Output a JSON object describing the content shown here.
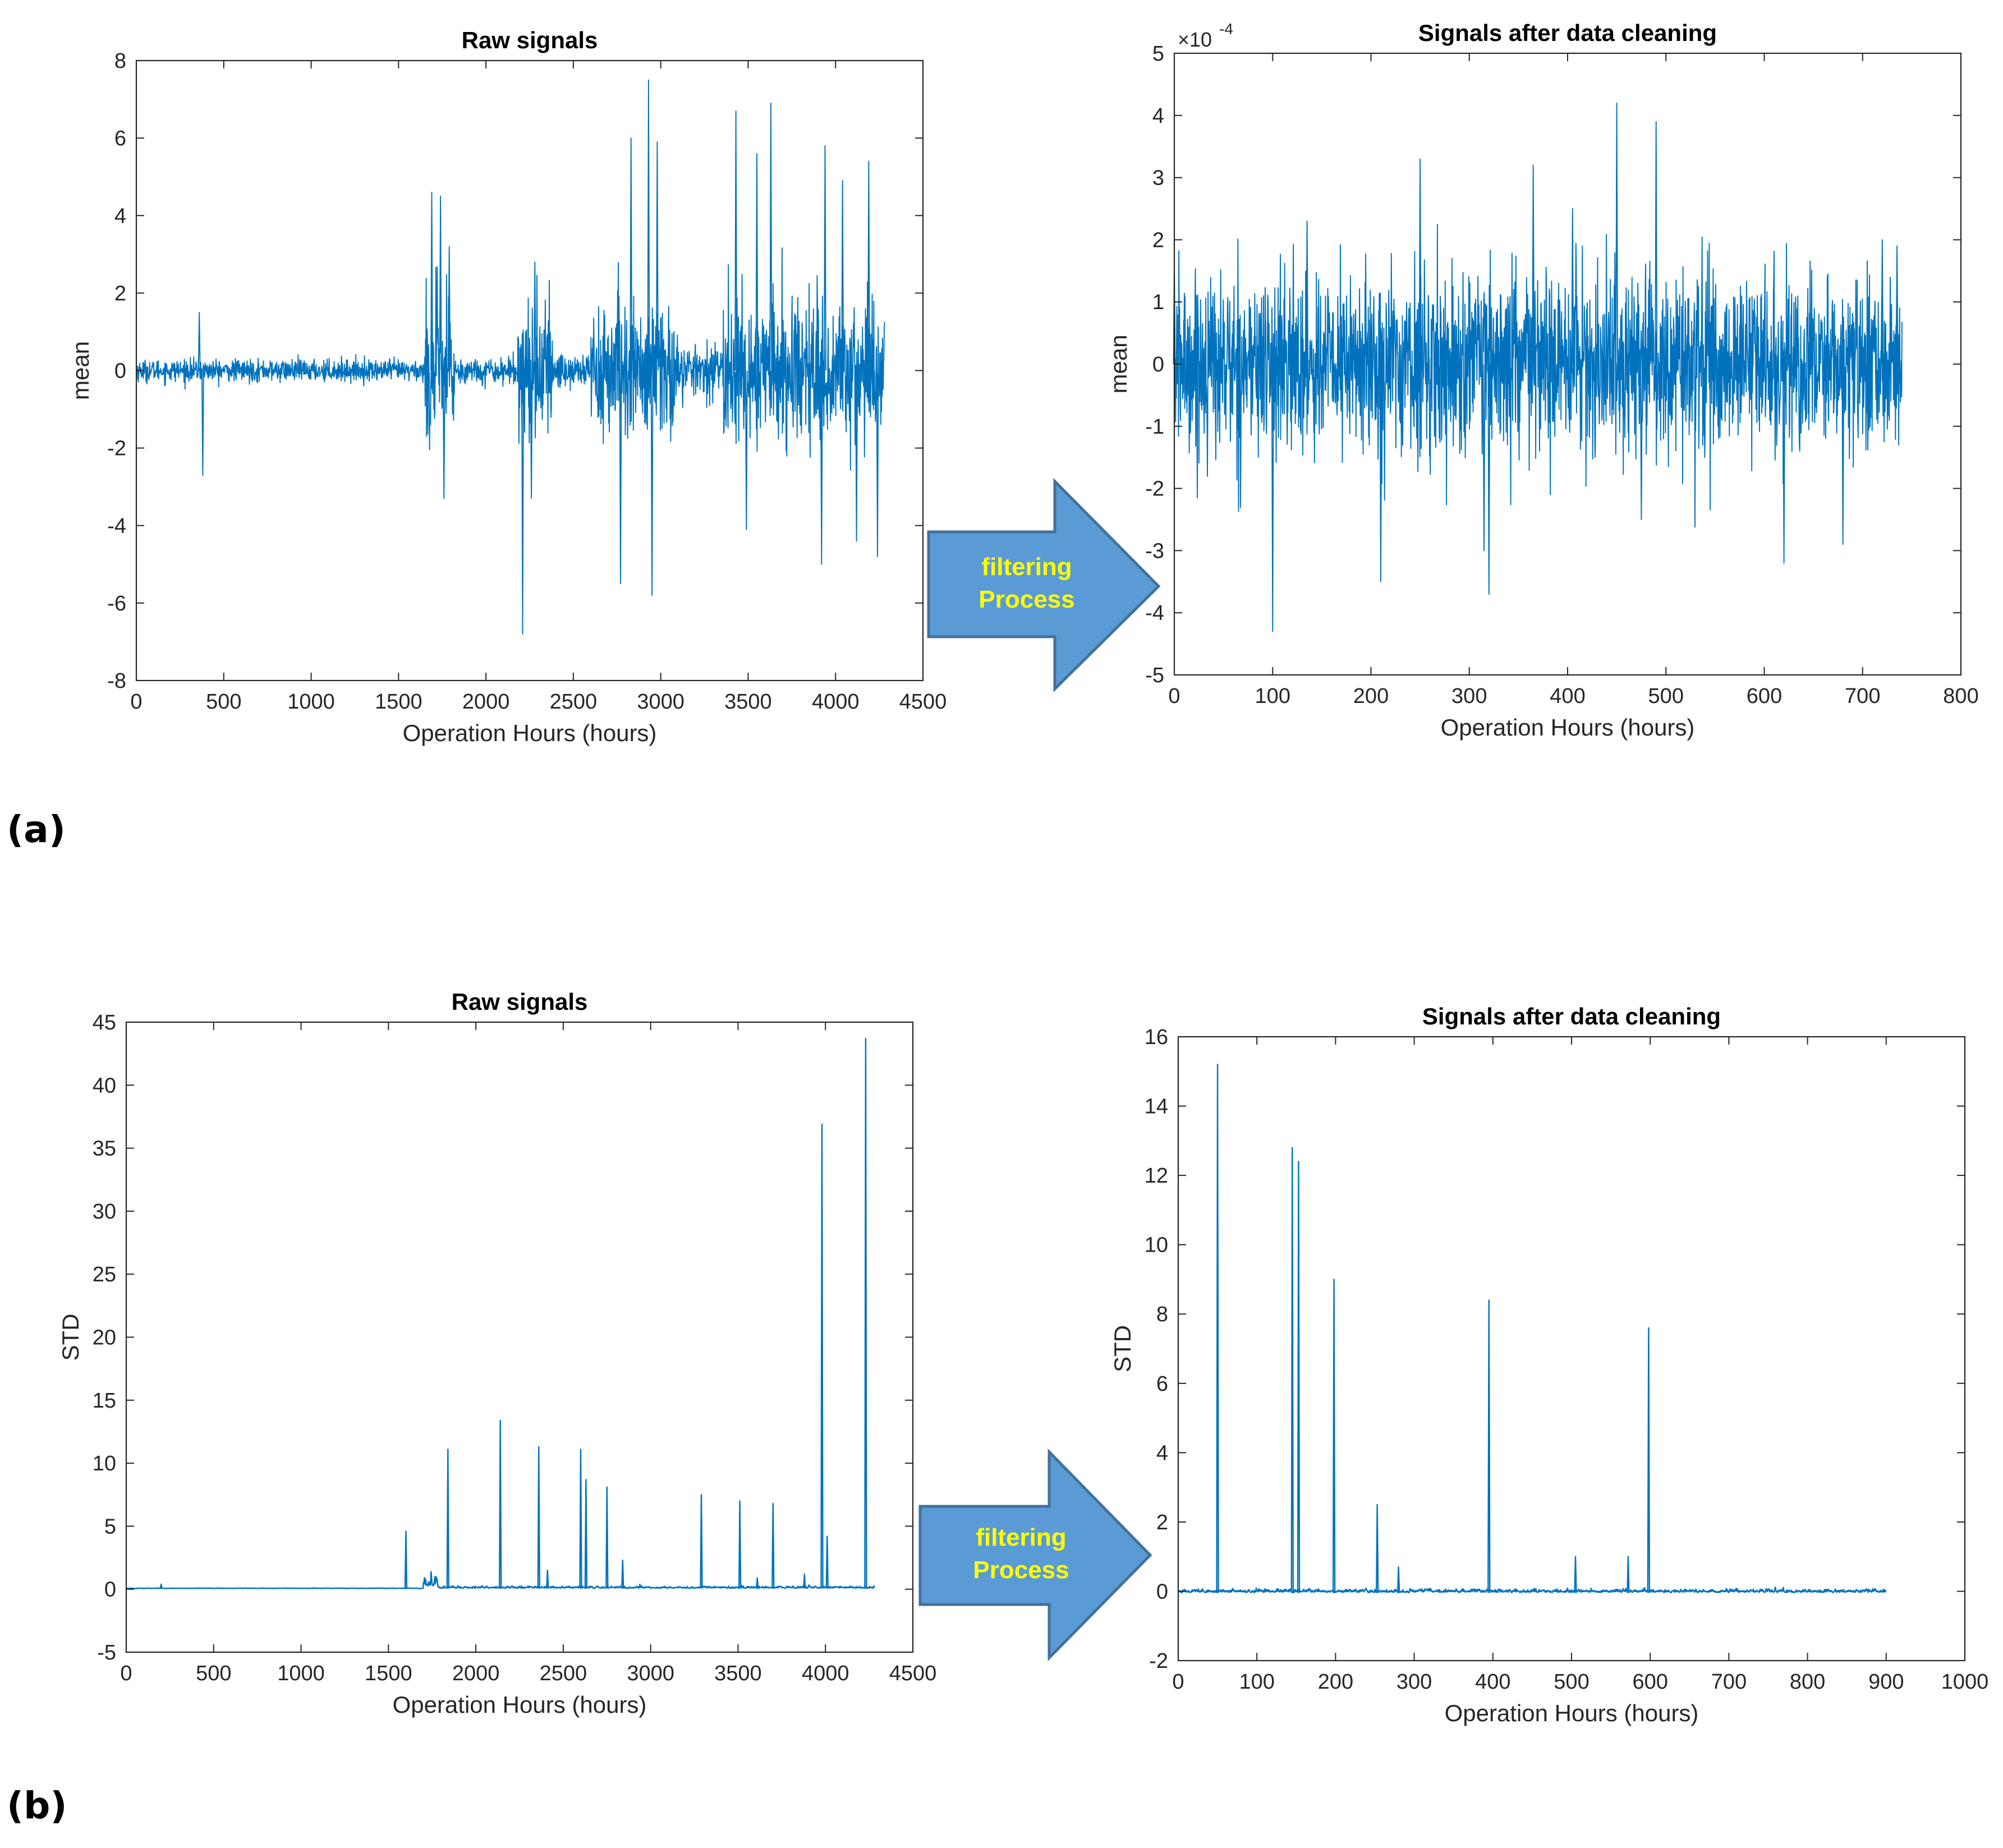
{
  "figure": {
    "panel_a_label": "(a)",
    "panel_b_label": "(b)",
    "arrow_a": {
      "line1": "filtering",
      "line2": "Process"
    },
    "arrow_b": {
      "line1": "filtering",
      "line2": "Process"
    },
    "colors": {
      "series": "#0072BD",
      "arrow_fill": "#5b9bd5",
      "arrow_stroke": "#41719c",
      "arrow_text": "#ffff00"
    }
  },
  "chart_data": [
    {
      "id": "a-raw",
      "type": "line",
      "title": "Raw signals",
      "xlabel": "Operation Hours (hours)",
      "ylabel": "mean",
      "xlim": [
        0,
        4500
      ],
      "ylim": [
        -8,
        8
      ],
      "xticks": [
        0,
        500,
        1000,
        1500,
        2000,
        2500,
        3000,
        3500,
        4000,
        4500
      ],
      "yticks": [
        -8,
        -6,
        -4,
        -2,
        0,
        2,
        4,
        6,
        8
      ],
      "x_extent": [
        0,
        4280
      ],
      "noise_bands": [
        {
          "x": [
            0,
            1650
          ],
          "amp": 0.25
        },
        {
          "x": [
            1650,
            1820
          ],
          "amp": 1.8
        },
        {
          "x": [
            1820,
            2180
          ],
          "amp": 0.3
        },
        {
          "x": [
            2180,
            2380
          ],
          "amp": 1.6
        },
        {
          "x": [
            2380,
            2600
          ],
          "amp": 0.45
        },
        {
          "x": [
            2600,
            3100
          ],
          "amp": 1.6
        },
        {
          "x": [
            3100,
            3350
          ],
          "amp": 0.55
        },
        {
          "x": [
            3350,
            4280
          ],
          "amp": 1.7
        }
      ],
      "peaks": [
        {
          "x": 360,
          "y": 1.5
        },
        {
          "x": 380,
          "y": -2.7
        },
        {
          "x": 1690,
          "y": 4.6
        },
        {
          "x": 1740,
          "y": 4.5
        },
        {
          "x": 1790,
          "y": 3.2
        },
        {
          "x": 1760,
          "y": -3.3
        },
        {
          "x": 2210,
          "y": -6.8
        },
        {
          "x": 2280,
          "y": 2.8
        },
        {
          "x": 2260,
          "y": -3.3
        },
        {
          "x": 2830,
          "y": 6.0
        },
        {
          "x": 2930,
          "y": 7.5
        },
        {
          "x": 2950,
          "y": -5.8
        },
        {
          "x": 2770,
          "y": -5.5
        },
        {
          "x": 2980,
          "y": 5.9
        },
        {
          "x": 3430,
          "y": 6.7
        },
        {
          "x": 3550,
          "y": 5.6
        },
        {
          "x": 3630,
          "y": 6.9
        },
        {
          "x": 3490,
          "y": -4.1
        },
        {
          "x": 3940,
          "y": 5.8
        },
        {
          "x": 3920,
          "y": -5.0
        },
        {
          "x": 4040,
          "y": 4.9
        },
        {
          "x": 4120,
          "y": -4.4
        },
        {
          "x": 4190,
          "y": 5.4
        },
        {
          "x": 4240,
          "y": -4.8
        }
      ]
    },
    {
      "id": "a-clean",
      "type": "line",
      "title": "Signals after data cleaning",
      "xlabel": "Operation Hours (hours)",
      "ylabel": "mean",
      "exponent_label": "×10",
      "exponent_power": "-4",
      "xlim": [
        0,
        800
      ],
      "ylim": [
        -5,
        5
      ],
      "xticks": [
        0,
        100,
        200,
        300,
        400,
        500,
        600,
        700,
        800
      ],
      "yticks": [
        -5,
        -4,
        -3,
        -2,
        -1,
        0,
        1,
        2,
        3,
        4,
        5
      ],
      "x_extent": [
        0,
        740
      ],
      "noise_bands": [
        {
          "x": [
            0,
            740
          ],
          "amp": 1.3
        }
      ],
      "peaks": [
        {
          "x": 0,
          "y": 1.6
        },
        {
          "x": 100,
          "y": -4.3
        },
        {
          "x": 135,
          "y": 2.3
        },
        {
          "x": 210,
          "y": -3.5
        },
        {
          "x": 250,
          "y": 3.3
        },
        {
          "x": 315,
          "y": -3.0
        },
        {
          "x": 320,
          "y": -3.7
        },
        {
          "x": 365,
          "y": 3.2
        },
        {
          "x": 405,
          "y": 2.5
        },
        {
          "x": 450,
          "y": 4.2
        },
        {
          "x": 475,
          "y": -2.5
        },
        {
          "x": 490,
          "y": 3.9
        },
        {
          "x": 620,
          "y": -3.2
        },
        {
          "x": 680,
          "y": -2.9
        },
        {
          "x": 735,
          "y": 1.9
        },
        {
          "x": 720,
          "y": 2.0
        }
      ]
    },
    {
      "id": "b-raw",
      "type": "line",
      "title": "Raw signals",
      "xlabel": "Operation Hours (hours)",
      "ylabel": "STD",
      "xlim": [
        0,
        4500
      ],
      "ylim": [
        -5,
        45
      ],
      "xticks": [
        0,
        500,
        1000,
        1500,
        2000,
        2500,
        3000,
        3500,
        4000,
        4500
      ],
      "yticks": [
        -5,
        0,
        5,
        10,
        15,
        20,
        25,
        30,
        35,
        40,
        45
      ],
      "x_extent": [
        0,
        4280
      ],
      "baseline": 0.05,
      "noise_bands": [
        {
          "x": [
            0,
            1700
          ],
          "amp": 0.05
        },
        {
          "x": [
            1700,
            1780
          ],
          "amp": 1.2
        },
        {
          "x": [
            1780,
            4280
          ],
          "amp": 0.2
        }
      ],
      "peaks": [
        {
          "x": 1600,
          "y": 4.6
        },
        {
          "x": 1840,
          "y": 11.1
        },
        {
          "x": 2140,
          "y": 13.4
        },
        {
          "x": 2360,
          "y": 11.3
        },
        {
          "x": 2410,
          "y": 1.5
        },
        {
          "x": 2600,
          "y": 11.1
        },
        {
          "x": 2630,
          "y": 8.7
        },
        {
          "x": 2750,
          "y": 8.1
        },
        {
          "x": 2840,
          "y": 2.3
        },
        {
          "x": 3290,
          "y": 7.5
        },
        {
          "x": 3510,
          "y": 7.0
        },
        {
          "x": 3610,
          "y": 0.9
        },
        {
          "x": 3700,
          "y": 6.8
        },
        {
          "x": 3880,
          "y": 1.2
        },
        {
          "x": 3980,
          "y": 36.9
        },
        {
          "x": 4010,
          "y": 4.2
        },
        {
          "x": 4230,
          "y": 43.7
        },
        {
          "x": 200,
          "y": 0.4
        }
      ]
    },
    {
      "id": "b-clean",
      "type": "line",
      "title": "Signals after data cleaning",
      "xlabel": "Operation Hours (hours)",
      "ylabel": "STD",
      "xlim": [
        0,
        1000
      ],
      "ylim": [
        -2,
        16
      ],
      "xticks": [
        0,
        100,
        200,
        300,
        400,
        500,
        600,
        700,
        800,
        900,
        1000
      ],
      "yticks": [
        -2,
        0,
        2,
        4,
        6,
        8,
        10,
        12,
        14,
        16
      ],
      "x_extent": [
        0,
        900
      ],
      "baseline": -0.05,
      "noise_bands": [
        {
          "x": [
            0,
            900
          ],
          "amp": 0.12
        }
      ],
      "peaks": [
        {
          "x": 50,
          "y": 15.2
        },
        {
          "x": 145,
          "y": 12.8
        },
        {
          "x": 153,
          "y": 12.4
        },
        {
          "x": 198,
          "y": 9.0
        },
        {
          "x": 253,
          "y": 2.5
        },
        {
          "x": 280,
          "y": 0.7
        },
        {
          "x": 395,
          "y": 8.4
        },
        {
          "x": 505,
          "y": 1.0
        },
        {
          "x": 572,
          "y": 1.0
        },
        {
          "x": 598,
          "y": 7.6
        }
      ]
    }
  ]
}
